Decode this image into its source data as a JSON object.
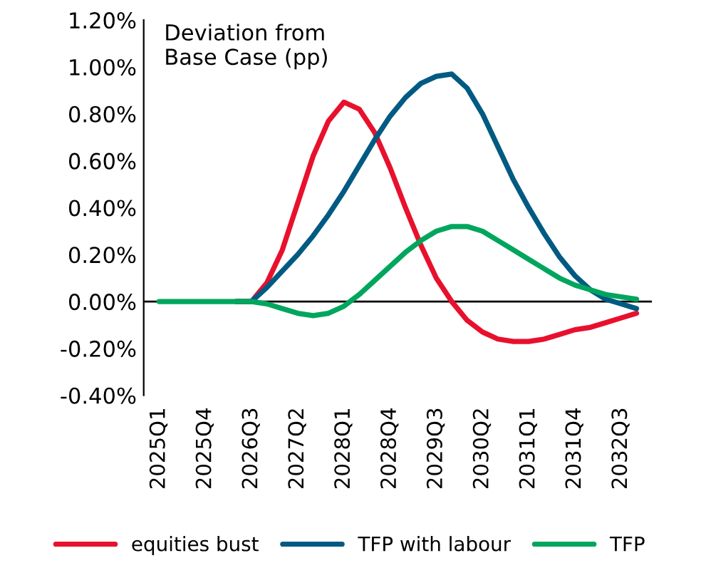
{
  "chart_data": {
    "type": "line",
    "annotations": [
      "Deviation from\nBase Case (pp)"
    ],
    "categories": [
      "2025Q1",
      null,
      null,
      "2025Q4",
      null,
      null,
      "2026Q3",
      null,
      null,
      "2027Q2",
      null,
      null,
      "2028Q1",
      null,
      null,
      "2028Q4",
      null,
      null,
      "2029Q3",
      null,
      null,
      "2030Q2",
      null,
      null,
      "2031Q1",
      null,
      null,
      "2031Q4",
      null,
      null,
      "2032Q3",
      null
    ],
    "series": [
      {
        "name": "equities bust",
        "color": "#e8112d",
        "values": [
          null,
          null,
          null,
          null,
          null,
          0,
          0,
          0.08,
          0.22,
          0.42,
          0.62,
          0.77,
          0.85,
          0.82,
          0.72,
          0.57,
          0.4,
          0.24,
          0.1,
          0.0,
          -0.08,
          -0.13,
          -0.16,
          -0.17,
          -0.17,
          -0.16,
          -0.14,
          -0.12,
          -0.11,
          -0.09,
          -0.07,
          -0.05
        ]
      },
      {
        "name": "TFP with labour",
        "color": "#005a82",
        "values": [
          null,
          null,
          null,
          null,
          null,
          0,
          0,
          0.06,
          0.13,
          0.2,
          0.28,
          0.37,
          0.47,
          0.58,
          0.69,
          0.79,
          0.87,
          0.93,
          0.96,
          0.97,
          0.91,
          0.8,
          0.66,
          0.52,
          0.4,
          0.29,
          0.19,
          0.11,
          0.05,
          0.01,
          -0.01,
          -0.03
        ]
      },
      {
        "name": "TFP",
        "color": "#00a65d",
        "values": [
          0,
          0,
          0,
          0,
          0,
          0,
          0,
          -0.01,
          -0.03,
          -0.05,
          -0.06,
          -0.05,
          -0.02,
          0.03,
          0.09,
          0.15,
          0.21,
          0.26,
          0.3,
          0.32,
          0.32,
          0.3,
          0.26,
          0.22,
          0.18,
          0.14,
          0.1,
          0.07,
          0.05,
          0.03,
          0.02,
          0.01
        ]
      }
    ],
    "ylim": [
      -0.4,
      1.2
    ],
    "yticks": [
      {
        "value": -0.4,
        "label": "-0.40%"
      },
      {
        "value": -0.2,
        "label": "-0.20%"
      },
      {
        "value": 0,
        "label": "0.00%"
      },
      {
        "value": 0.2,
        "label": "0.20%"
      },
      {
        "value": 0.4,
        "label": "0.40%"
      },
      {
        "value": 0.6,
        "label": "0.60%"
      },
      {
        "value": 0.8,
        "label": "0.80%"
      },
      {
        "value": 1.0,
        "label": "1.00%"
      },
      {
        "value": 1.2,
        "label": "1.20%"
      }
    ],
    "ref_lines": [
      {
        "axis": "y",
        "value": 0,
        "color": "#000000"
      }
    ],
    "grid": false,
    "legend": "bottom",
    "marker": "none",
    "line_style": "solid"
  }
}
